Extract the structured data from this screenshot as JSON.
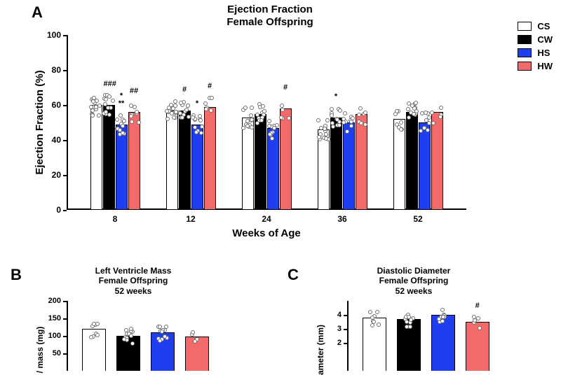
{
  "panelA": {
    "label": "A",
    "title_l1": "Ejection Fraction",
    "title_l2": "Female Offspring",
    "ylabel": "Ejection Fraction (%)",
    "xlabel": "Weeks of Age",
    "ylim": [
      0,
      100
    ],
    "ytick_step": 20,
    "yticks": [
      "0",
      "20",
      "40",
      "60",
      "80",
      "100"
    ],
    "categories": [
      "8",
      "12",
      "24",
      "36",
      "52"
    ],
    "series": [
      "CS",
      "CW",
      "HS",
      "HW"
    ],
    "colors": {
      "CS": "#ffffff",
      "CW": "#000000",
      "HS": "#1e3ef0",
      "HW": "#f26a6a"
    },
    "values": {
      "8": {
        "CS": 60,
        "CW": 60,
        "HS": 49,
        "HW": 56
      },
      "12": {
        "CS": 57,
        "CW": 57,
        "HS": 49,
        "HW": 59
      },
      "24": {
        "CS": 53,
        "CW": 55,
        "HS": 47,
        "HW": 58
      },
      "36": {
        "CS": 46,
        "CW": 53,
        "HS": 50,
        "HW": 55
      },
      "52": {
        "CS": 52,
        "CW": 56,
        "HS": 50,
        "HW": 56
      }
    },
    "sig": {
      "8": {
        "CS": "",
        "CW": "###",
        "HS": "*\n**",
        "HW": "##"
      },
      "12": {
        "CS": "",
        "CW": "#",
        "HS": "*",
        "HW": "#"
      },
      "24": {
        "CS": "",
        "CW": "",
        "HS": "",
        "HW": "#"
      },
      "36": {
        "CS": "",
        "CW": "*",
        "HS": "",
        "HW": ""
      },
      "52": {
        "CS": "",
        "CW": "",
        "HS": "",
        "HW": ""
      }
    },
    "n_points": {
      "8": {
        "CS": 18,
        "CW": 13,
        "HS": 13,
        "HW": 8
      },
      "12": {
        "CS": 16,
        "CW": 13,
        "HS": 12,
        "HW": 6
      },
      "24": {
        "CS": 13,
        "CW": 12,
        "HS": 11,
        "HW": 5
      },
      "36": {
        "CS": 14,
        "CW": 12,
        "HS": 11,
        "HW": 7
      },
      "52": {
        "CS": 8,
        "CW": 13,
        "HS": 10,
        "HW": 5
      }
    }
  },
  "panelB": {
    "label": "B",
    "title_l1": "Left Ventricle Mass",
    "title_l2": "Female Offspring",
    "title_l3": "52 weeks",
    "ylabel": "/ mass (mg)",
    "ylim": [
      0,
      200
    ],
    "ytick_step": 50,
    "yticks": [
      "50",
      "100",
      "150",
      "200"
    ],
    "values": {
      "CS": 120,
      "CW": 100,
      "HS": 110,
      "HW": 98
    },
    "colors": {
      "CS": "#ffffff",
      "CW": "#000000",
      "HS": "#1e3ef0",
      "HW": "#f26a6a"
    },
    "n_points": {
      "CS": 8,
      "CW": 13,
      "HS": 12,
      "HW": 5
    }
  },
  "panelC": {
    "label": "C",
    "title_l1": "Diastolic Diameter",
    "title_l2": "Female Offspring",
    "title_l3": "52 weeks",
    "ylabel": "ameter (mm)",
    "ylim": [
      0,
      5
    ],
    "ytick_step": 1,
    "yticks": [
      "2",
      "3",
      "4"
    ],
    "values": {
      "CS": 3.8,
      "CW": 3.7,
      "HS": 4.0,
      "HW": 3.5
    },
    "sig": {
      "CS": "",
      "CW": "",
      "HS": "",
      "HW": "#"
    },
    "colors": {
      "CS": "#ffffff",
      "CW": "#000000",
      "HS": "#1e3ef0",
      "HW": "#f26a6a"
    },
    "n_points": {
      "CS": 8,
      "CW": 12,
      "HS": 12,
      "HW": 5
    }
  },
  "legend": [
    {
      "label": "CS",
      "color": "#ffffff"
    },
    {
      "label": "CW",
      "color": "#000000"
    },
    {
      "label": "HS",
      "color": "#1e3ef0"
    },
    {
      "label": "HW",
      "color": "#f26a6a"
    }
  ]
}
